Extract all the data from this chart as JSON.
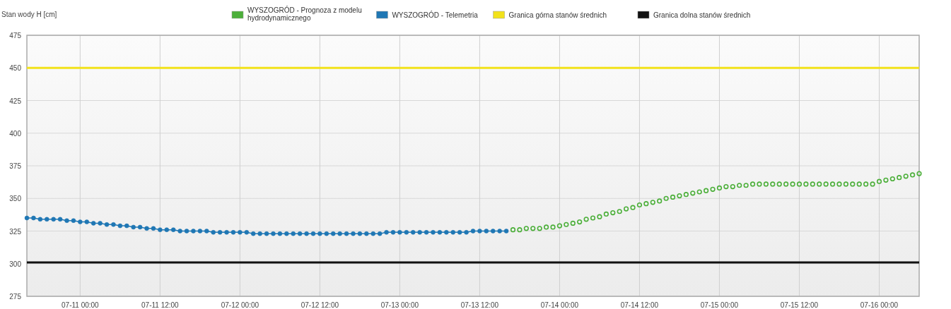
{
  "chart_data": {
    "type": "line",
    "ylabel": "Stan wody H [cm]",
    "xlim": [
      "--07-10T16:00",
      "--07-16T06:00"
    ],
    "xticks": [
      {
        "value": "--07-11T00:00",
        "label": "07-11 00:00"
      },
      {
        "value": "--07-11T12:00",
        "label": "07-11 12:00"
      },
      {
        "value": "--07-12T00:00",
        "label": "07-12 00:00"
      },
      {
        "value": "--07-12T12:00",
        "label": "07-12 12:00"
      },
      {
        "value": "--07-13T00:00",
        "label": "07-13 00:00"
      },
      {
        "value": "--07-13T12:00",
        "label": "07-13 12:00"
      },
      {
        "value": "--07-14T00:00",
        "label": "07-14 00:00"
      },
      {
        "value": "--07-14T12:00",
        "label": "07-14 12:00"
      },
      {
        "value": "--07-15T00:00",
        "label": "07-15 00:00"
      },
      {
        "value": "--07-15T12:00",
        "label": "07-15 12:00"
      },
      {
        "value": "--07-16T00:00",
        "label": "07-16 00:00"
      }
    ],
    "ylim": [
      275,
      475
    ],
    "yticks": [
      275,
      300,
      325,
      350,
      375,
      400,
      425,
      450,
      475
    ],
    "grid": true,
    "legend": "top",
    "marker": "circle",
    "series": [
      {
        "name": "WYSZOGRÓD - Prognoza z modelu hydrodynamicznego",
        "type": "scatter",
        "color": "#4caf3a",
        "x": [
          "--07-13T17:00",
          "--07-13T18:00",
          "--07-13T19:00",
          "--07-13T20:00",
          "--07-13T21:00",
          "--07-13T22:00",
          "--07-13T23:00",
          "--07-14T00:00",
          "--07-14T01:00",
          "--07-14T02:00",
          "--07-14T03:00",
          "--07-14T04:00",
          "--07-14T05:00",
          "--07-14T06:00",
          "--07-14T07:00",
          "--07-14T08:00",
          "--07-14T09:00",
          "--07-14T10:00",
          "--07-14T11:00",
          "--07-14T12:00",
          "--07-14T13:00",
          "--07-14T14:00",
          "--07-14T15:00",
          "--07-14T16:00",
          "--07-14T17:00",
          "--07-14T18:00",
          "--07-14T19:00",
          "--07-14T20:00",
          "--07-14T21:00",
          "--07-14T22:00",
          "--07-14T23:00",
          "--07-15T00:00",
          "--07-15T01:00",
          "--07-15T02:00",
          "--07-15T03:00",
          "--07-15T04:00",
          "--07-15T05:00",
          "--07-15T06:00",
          "--07-15T07:00",
          "--07-15T08:00",
          "--07-15T09:00",
          "--07-15T10:00",
          "--07-15T11:00",
          "--07-15T12:00",
          "--07-15T13:00",
          "--07-15T14:00",
          "--07-15T15:00",
          "--07-15T16:00",
          "--07-15T17:00",
          "--07-15T18:00",
          "--07-15T19:00",
          "--07-15T20:00",
          "--07-15T21:00",
          "--07-15T22:00",
          "--07-15T23:00",
          "--07-16T00:00",
          "--07-16T01:00",
          "--07-16T02:00",
          "--07-16T03:00",
          "--07-16T04:00",
          "--07-16T05:00",
          "--07-16T06:00"
        ],
        "values": [
          326,
          326,
          327,
          327,
          327,
          328,
          328,
          329,
          330,
          331,
          332,
          334,
          335,
          336,
          338,
          339,
          340,
          342,
          343,
          345,
          346,
          347,
          348,
          350,
          351,
          352,
          353,
          354,
          355,
          356,
          357,
          358,
          359,
          359,
          360,
          360,
          361,
          361,
          361,
          361,
          361,
          361,
          361,
          361,
          361,
          361,
          361,
          361,
          361,
          361,
          361,
          361,
          361,
          361,
          361,
          363,
          364,
          365,
          366,
          367,
          368,
          369
        ]
      },
      {
        "name": "WYSZOGRÓD - Telemetria",
        "color": "#1f77b4",
        "x": [
          "--07-10T16:00",
          "--07-10T17:00",
          "--07-10T18:00",
          "--07-10T19:00",
          "--07-10T20:00",
          "--07-10T21:00",
          "--07-10T22:00",
          "--07-10T23:00",
          "--07-11T00:00",
          "--07-11T01:00",
          "--07-11T02:00",
          "--07-11T03:00",
          "--07-11T04:00",
          "--07-11T05:00",
          "--07-11T06:00",
          "--07-11T07:00",
          "--07-11T08:00",
          "--07-11T09:00",
          "--07-11T10:00",
          "--07-11T11:00",
          "--07-11T12:00",
          "--07-11T13:00",
          "--07-11T14:00",
          "--07-11T15:00",
          "--07-11T16:00",
          "--07-11T17:00",
          "--07-11T18:00",
          "--07-11T19:00",
          "--07-11T20:00",
          "--07-11T21:00",
          "--07-11T22:00",
          "--07-11T23:00",
          "--07-12T00:00",
          "--07-12T01:00",
          "--07-12T02:00",
          "--07-12T03:00",
          "--07-12T04:00",
          "--07-12T05:00",
          "--07-12T06:00",
          "--07-12T07:00",
          "--07-12T08:00",
          "--07-12T09:00",
          "--07-12T10:00",
          "--07-12T11:00",
          "--07-12T12:00",
          "--07-12T13:00",
          "--07-12T14:00",
          "--07-12T15:00",
          "--07-12T16:00",
          "--07-12T17:00",
          "--07-12T18:00",
          "--07-12T19:00",
          "--07-12T20:00",
          "--07-12T21:00",
          "--07-12T22:00",
          "--07-12T23:00",
          "--07-13T00:00",
          "--07-13T01:00",
          "--07-13T02:00",
          "--07-13T03:00",
          "--07-13T04:00",
          "--07-13T05:00",
          "--07-13T06:00",
          "--07-13T07:00",
          "--07-13T08:00",
          "--07-13T09:00",
          "--07-13T10:00",
          "--07-13T11:00",
          "--07-13T12:00",
          "--07-13T13:00",
          "--07-13T14:00",
          "--07-13T15:00",
          "--07-13T16:00"
        ],
        "values": [
          335,
          335,
          334,
          334,
          334,
          334,
          333,
          333,
          332,
          332,
          331,
          331,
          330,
          330,
          329,
          329,
          328,
          328,
          327,
          327,
          326,
          326,
          326,
          325,
          325,
          325,
          325,
          325,
          324,
          324,
          324,
          324,
          324,
          324,
          323,
          323,
          323,
          323,
          323,
          323,
          323,
          323,
          323,
          323,
          323,
          323,
          323,
          323,
          323,
          323,
          323,
          323,
          323,
          323,
          324,
          324,
          324,
          324,
          324,
          324,
          324,
          324,
          324,
          324,
          324,
          324,
          324,
          325,
          325,
          325,
          325,
          325,
          325
        ]
      }
    ],
    "ref_lines": [
      {
        "axis": "y",
        "value": 450,
        "label": "Granica górna stanów średnich",
        "color": "#f2e21a"
      },
      {
        "axis": "y",
        "value": 301,
        "label": "Granica dolna stanów średnich",
        "color": "#111111"
      }
    ]
  }
}
